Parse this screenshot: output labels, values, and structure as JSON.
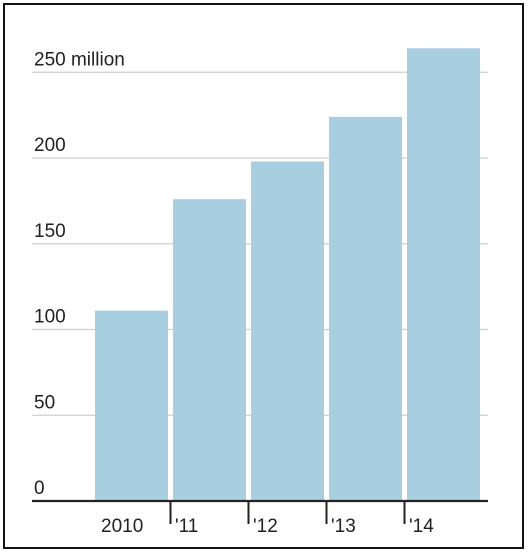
{
  "chart_data": {
    "type": "bar",
    "categories": [
      "2010",
      "'11",
      "'12",
      "'13",
      "'14"
    ],
    "values": [
      111,
      176,
      198,
      224,
      264
    ],
    "ylim": [
      0,
      264
    ],
    "yticks": [
      0,
      50,
      100,
      150,
      200,
      250
    ],
    "ytick_labels": [
      "0",
      "50",
      "100",
      "150",
      "200",
      "250 million"
    ],
    "title": "",
    "xlabel": "",
    "ylabel": "",
    "grid": true,
    "colors": {
      "bar": "#a8cfe0",
      "grid": "#cfcfcf",
      "axis": "#222222",
      "frame": "#111111"
    }
  }
}
